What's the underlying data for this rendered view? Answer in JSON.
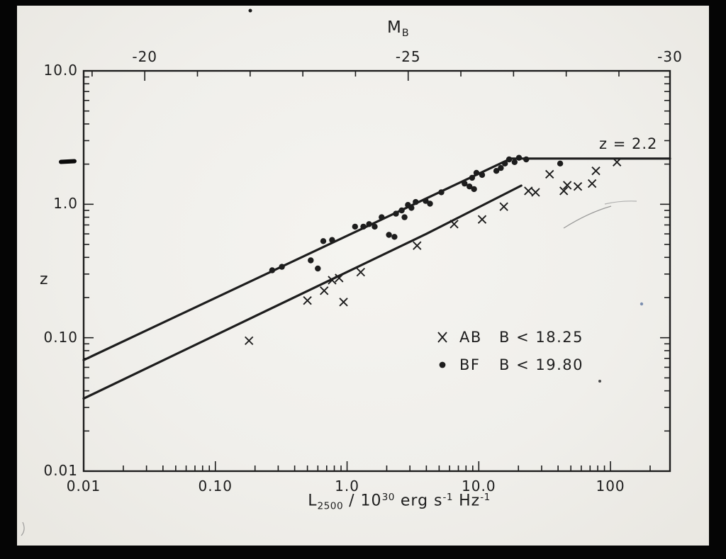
{
  "figure": {
    "top_axis": {
      "title": "M",
      "title_sub": "B"
    },
    "y_axis": {
      "label": "z"
    },
    "x_axis": {
      "label_parts": [
        {
          "text": "L"
        },
        {
          "text": "2500"
        },
        {
          "text": " / 10"
        },
        {
          "text": "30"
        },
        {
          "text": " erg s"
        },
        {
          "text": "-1"
        },
        {
          "text": " Hz"
        },
        {
          "text": "-1"
        }
      ]
    },
    "annotation": "z = 2.2",
    "legend": [
      {
        "marker": "cross",
        "sample": "AB",
        "limit": "B < 18.25"
      },
      {
        "marker": "dot",
        "sample": "BF",
        "limit": "B < 19.80"
      }
    ]
  },
  "chart_data": {
    "type": "scatter",
    "xscale": "log",
    "yscale": "log",
    "xlim": [
      0.01,
      283
    ],
    "ylim": [
      0.01,
      10
    ],
    "xlabel": "L_2500 / 10^30 erg s^-1 Hz^-1",
    "ylabel": "z",
    "top_axis_label": "M_B",
    "grid": false,
    "top_axis": {
      "range": [
        -19,
        -30
      ],
      "minor_step": 1,
      "major_ticks": [
        -20,
        -25,
        -30
      ],
      "tick_labels": [
        "-20",
        "-25",
        "-30"
      ],
      "mag_at_L1": -23.84,
      "mag_per_decade": -2.5
    },
    "x_ticks": {
      "values": [
        0.01,
        0.1,
        1,
        10,
        100
      ],
      "labels": [
        "0.01",
        "0.10",
        "1.0",
        "10.0",
        "100"
      ]
    },
    "y_ticks": {
      "values": [
        10,
        1,
        0.1,
        0.01
      ],
      "labels": [
        "10.0",
        "1.0",
        "0.10",
        "0.01"
      ]
    },
    "series": [
      {
        "name": "AB B < 18.25",
        "marker": "cross",
        "points": [
          [
            0.18,
            0.095
          ],
          [
            0.5,
            0.19
          ],
          [
            0.67,
            0.225
          ],
          [
            0.77,
            0.27
          ],
          [
            0.87,
            0.28
          ],
          [
            0.94,
            0.185
          ],
          [
            1.27,
            0.31
          ],
          [
            3.4,
            0.49
          ],
          [
            6.5,
            0.71
          ],
          [
            10.6,
            0.77
          ],
          [
            15.5,
            0.96
          ],
          [
            23.8,
            1.26
          ],
          [
            27.0,
            1.23
          ],
          [
            34.5,
            1.68
          ],
          [
            44.2,
            1.26
          ],
          [
            47.0,
            1.39
          ],
          [
            56.5,
            1.36
          ],
          [
            72.5,
            1.43
          ],
          [
            77.5,
            1.78
          ],
          [
            112,
            2.07
          ]
        ]
      },
      {
        "name": "BF B < 19.80",
        "marker": "dot",
        "points": [
          [
            0.27,
            0.32
          ],
          [
            0.32,
            0.34
          ],
          [
            0.53,
            0.38
          ],
          [
            0.6,
            0.33
          ],
          [
            0.66,
            0.53
          ],
          [
            0.77,
            0.54
          ],
          [
            1.15,
            0.68
          ],
          [
            1.33,
            0.68
          ],
          [
            1.47,
            0.71
          ],
          [
            1.62,
            0.68
          ],
          [
            1.83,
            0.8
          ],
          [
            2.08,
            0.59
          ],
          [
            2.29,
            0.57
          ],
          [
            2.35,
            0.85
          ],
          [
            2.6,
            0.9
          ],
          [
            2.73,
            0.8
          ],
          [
            2.9,
            0.99
          ],
          [
            3.08,
            0.94
          ],
          [
            3.32,
            1.04
          ],
          [
            3.95,
            1.06
          ],
          [
            4.26,
            1.01
          ],
          [
            5.2,
            1.23
          ],
          [
            7.8,
            1.43
          ],
          [
            8.5,
            1.36
          ],
          [
            8.9,
            1.58
          ],
          [
            9.2,
            1.3
          ],
          [
            9.6,
            1.72
          ],
          [
            10.6,
            1.66
          ],
          [
            13.6,
            1.78
          ],
          [
            14.7,
            1.87
          ],
          [
            15.8,
            2.02
          ],
          [
            17.0,
            2.17
          ],
          [
            18.7,
            2.07
          ],
          [
            20.2,
            2.23
          ],
          [
            22.9,
            2.17
          ],
          [
            41.5,
            2.02
          ]
        ]
      }
    ],
    "lines": [
      {
        "name": "upper-flux-limit-curve",
        "points": [
          [
            0.01,
            0.068
          ],
          [
            17.5,
            2.2
          ],
          [
            283,
            2.2
          ]
        ]
      },
      {
        "name": "lower-flux-limit-curve",
        "points": [
          [
            0.01,
            0.035
          ],
          [
            4.0,
            0.6
          ],
          [
            21,
            1.38
          ]
        ]
      }
    ],
    "annotations": [
      {
        "text": "z = 2.2",
        "x": 85,
        "y": 2.8
      }
    ]
  }
}
